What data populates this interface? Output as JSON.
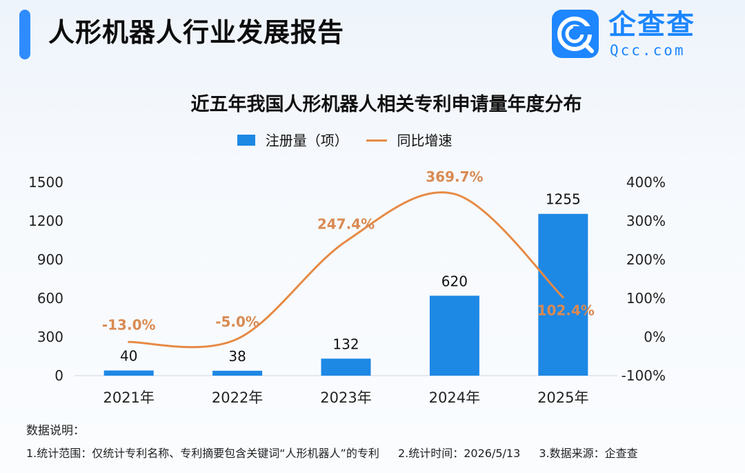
{
  "header": {
    "title": "人形机器人行业发展报告",
    "brand_name": "企查查",
    "brand_domain": "Qcc.com",
    "brand_color": "#1e86ff",
    "accent_color": "#2f8cff"
  },
  "chart_data": {
    "type": "bar",
    "title": "近五年我国人形机器人相关专利申请量年度分布",
    "categories": [
      "2021年",
      "2022年",
      "2023年",
      "2024年",
      "2025年"
    ],
    "series": [
      {
        "name": "注册量（项）",
        "type": "bar",
        "axis": "left",
        "color": "#1e88e5",
        "values": [
          40,
          38,
          132,
          620,
          1255
        ]
      },
      {
        "name": "同比增速",
        "type": "line",
        "axis": "right",
        "color": "#e68a45",
        "values": [
          -13.0,
          -5.0,
          247.4,
          369.7,
          102.4
        ]
      }
    ],
    "bar_labels": [
      "40",
      "38",
      "132",
      "620",
      "1255"
    ],
    "line_labels": [
      "-13.0%",
      "-5.0%",
      "247.4%",
      "369.7%",
      "102.4%"
    ],
    "y_left": {
      "ticks": [
        "0",
        "300",
        "600",
        "900",
        "1200",
        "1500"
      ],
      "ylim": [
        0,
        1500
      ]
    },
    "y_right": {
      "ticks": [
        "-100%",
        "0%",
        "100%",
        "200%",
        "300%",
        "400%"
      ],
      "ylim": [
        -100,
        400
      ]
    },
    "legend_position": "top-center",
    "grid": false
  },
  "notes": {
    "heading": "数据说明：",
    "items": [
      "1.统计范围：仅统计专利名称、专利摘要包含关键词“人形机器人”的专利",
      "2.统计时间：2026/5/13",
      "3.数据来源：企查查"
    ]
  }
}
